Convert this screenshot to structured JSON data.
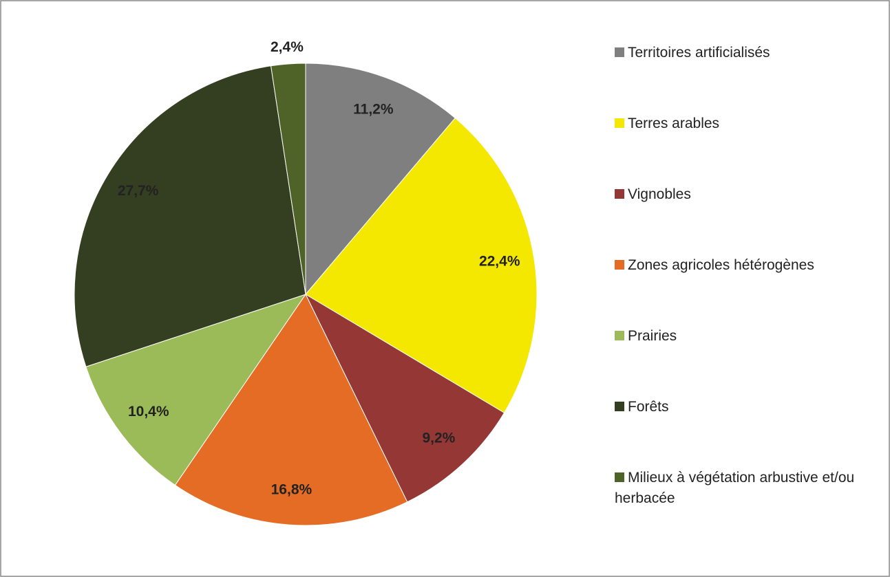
{
  "chart_data": {
    "type": "pie",
    "categories": [
      "Territoires artificialisés",
      "Terres arables",
      "Vignobles",
      "Zones agricoles hétérogènes",
      "Prairies",
      "Forêts",
      "Milieux à végétation arbustive et/ou herbacée"
    ],
    "values": [
      11.2,
      22.4,
      9.2,
      16.8,
      10.4,
      27.7,
      2.4
    ],
    "value_labels": [
      "11,2%",
      "22,4%",
      "9,2%",
      "16,8%",
      "10,4%",
      "27,7%",
      "2,4%"
    ],
    "colors": [
      "#7f7f7f",
      "#f5e800",
      "#953735",
      "#e46c25",
      "#9bbb59",
      "#333f20",
      "#4f6228"
    ],
    "legend": "right"
  }
}
